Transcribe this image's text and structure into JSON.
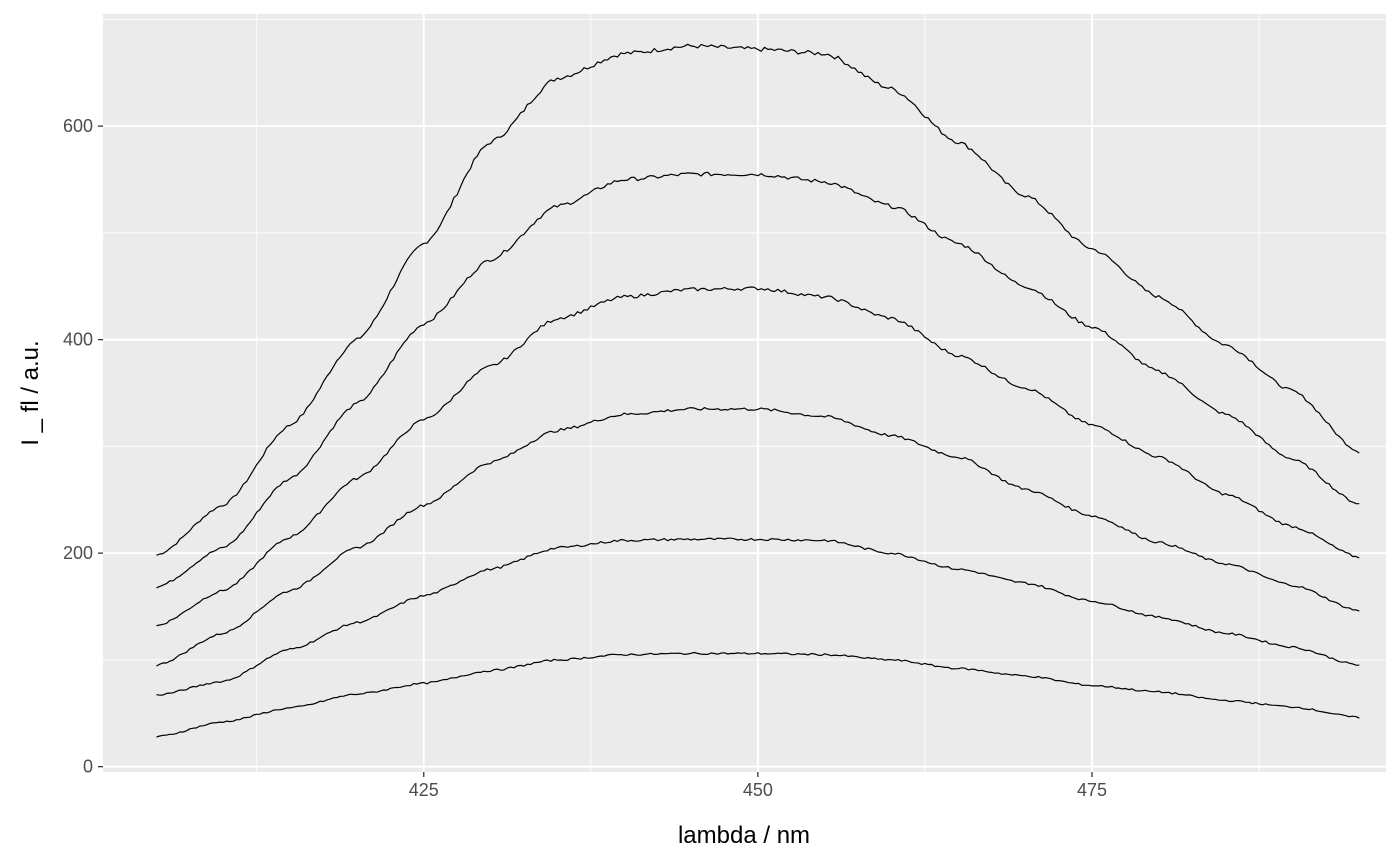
{
  "chart_data": {
    "type": "line",
    "title": "",
    "xlabel": "lambda / nm",
    "ylabel": "I _ fl / a.u.",
    "xlim": [
      401,
      497
    ],
    "ylim": [
      -5,
      705
    ],
    "x_ticks": [
      425,
      450,
      475
    ],
    "y_ticks": [
      0,
      200,
      400,
      600
    ],
    "grid": true,
    "legend": "none",
    "colors": {
      "panel": "#ebebeb",
      "grid": "#ffffff",
      "line": "#000000",
      "tick_text": "#4d4d4d",
      "tick_mark": "#333333"
    },
    "series": [
      {
        "points": [
          [
            405,
            198
          ],
          [
            410,
            245
          ],
          [
            415,
            320
          ],
          [
            420,
            400
          ],
          [
            425,
            490
          ],
          [
            430,
            585
          ],
          [
            435,
            645
          ],
          [
            440,
            668
          ],
          [
            445,
            675
          ],
          [
            450,
            672
          ],
          [
            455,
            668
          ],
          [
            460,
            635
          ],
          [
            465,
            585
          ],
          [
            470,
            535
          ],
          [
            475,
            485
          ],
          [
            480,
            440
          ],
          [
            485,
            395
          ],
          [
            490,
            352
          ],
          [
            495,
            295
          ]
        ]
      },
      {
        "points": [
          [
            405,
            168
          ],
          [
            410,
            205
          ],
          [
            415,
            270
          ],
          [
            420,
            340
          ],
          [
            425,
            415
          ],
          [
            430,
            475
          ],
          [
            435,
            525
          ],
          [
            440,
            550
          ],
          [
            445,
            555
          ],
          [
            450,
            555
          ],
          [
            455,
            548
          ],
          [
            460,
            525
          ],
          [
            465,
            490
          ],
          [
            470,
            450
          ],
          [
            475,
            412
          ],
          [
            480,
            370
          ],
          [
            485,
            330
          ],
          [
            490,
            288
          ],
          [
            495,
            246
          ]
        ]
      },
      {
        "points": [
          [
            405,
            132
          ],
          [
            410,
            165
          ],
          [
            415,
            215
          ],
          [
            420,
            270
          ],
          [
            425,
            325
          ],
          [
            430,
            375
          ],
          [
            435,
            420
          ],
          [
            440,
            440
          ],
          [
            445,
            447
          ],
          [
            450,
            448
          ],
          [
            455,
            440
          ],
          [
            460,
            420
          ],
          [
            465,
            385
          ],
          [
            470,
            355
          ],
          [
            475,
            320
          ],
          [
            480,
            290
          ],
          [
            485,
            255
          ],
          [
            490,
            225
          ],
          [
            495,
            196
          ]
        ]
      },
      {
        "points": [
          [
            405,
            95
          ],
          [
            410,
            125
          ],
          [
            415,
            165
          ],
          [
            420,
            205
          ],
          [
            425,
            245
          ],
          [
            430,
            285
          ],
          [
            435,
            315
          ],
          [
            440,
            330
          ],
          [
            445,
            335
          ],
          [
            450,
            335
          ],
          [
            455,
            328
          ],
          [
            460,
            310
          ],
          [
            465,
            290
          ],
          [
            470,
            260
          ],
          [
            475,
            235
          ],
          [
            480,
            210
          ],
          [
            485,
            190
          ],
          [
            490,
            170
          ],
          [
            495,
            146
          ]
        ]
      },
      {
        "points": [
          [
            405,
            67
          ],
          [
            410,
            80
          ],
          [
            415,
            110
          ],
          [
            420,
            135
          ],
          [
            425,
            160
          ],
          [
            430,
            185
          ],
          [
            435,
            205
          ],
          [
            440,
            212
          ],
          [
            445,
            213
          ],
          [
            450,
            213
          ],
          [
            455,
            212
          ],
          [
            460,
            200
          ],
          [
            465,
            185
          ],
          [
            470,
            172
          ],
          [
            475,
            155
          ],
          [
            480,
            140
          ],
          [
            485,
            125
          ],
          [
            490,
            112
          ],
          [
            495,
            95
          ]
        ]
      },
      {
        "points": [
          [
            405,
            28
          ],
          [
            410,
            42
          ],
          [
            415,
            55
          ],
          [
            420,
            68
          ],
          [
            425,
            78
          ],
          [
            430,
            90
          ],
          [
            435,
            100
          ],
          [
            440,
            105
          ],
          [
            445,
            106
          ],
          [
            450,
            106
          ],
          [
            455,
            105
          ],
          [
            460,
            100
          ],
          [
            465,
            92
          ],
          [
            470,
            85
          ],
          [
            475,
            76
          ],
          [
            480,
            70
          ],
          [
            485,
            62
          ],
          [
            490,
            56
          ],
          [
            495,
            46
          ]
        ]
      }
    ]
  }
}
